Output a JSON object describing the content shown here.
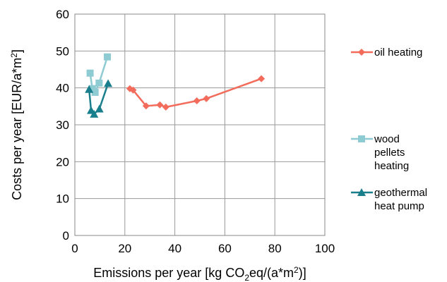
{
  "chart_data": {
    "type": "scatter",
    "xlabel_parts": [
      "Emissions per year [kg CO",
      "2",
      "eq/(a*m",
      "2",
      ")]"
    ],
    "ylabel_parts": [
      "Costs per year [EUR/a*m",
      "2",
      "]"
    ],
    "xlim": [
      0,
      100
    ],
    "ylim": [
      0,
      60
    ],
    "x_ticks": [
      0,
      20,
      40,
      60,
      80,
      100
    ],
    "y_ticks": [
      0,
      10,
      20,
      30,
      40,
      50,
      60
    ],
    "grid": true,
    "legend_position": "right",
    "series": [
      {
        "name": "oil heating",
        "name_lines": [
          "oil heating"
        ],
        "color": "#f26b5b",
        "marker": "diamond",
        "points": [
          [
            22.0,
            39.8
          ],
          [
            23.3,
            39.4
          ],
          [
            28.5,
            35.1
          ],
          [
            34.0,
            35.4
          ],
          [
            36.4,
            34.8
          ],
          [
            48.8,
            36.5
          ],
          [
            52.6,
            37.1
          ],
          [
            74.6,
            42.5
          ]
        ]
      },
      {
        "name": "wood pellets heating",
        "name_lines": [
          "wood",
          "pellets",
          "heating"
        ],
        "color": "#8ecbd3",
        "marker": "square",
        "points": [
          [
            6.1,
            44.0
          ],
          [
            7.0,
            39.8
          ],
          [
            8.1,
            38.8
          ],
          [
            9.7,
            41.3
          ],
          [
            13.0,
            48.4
          ]
        ]
      },
      {
        "name": "geothermal heat pump",
        "name_lines": [
          "geothermal",
          "heat pump"
        ],
        "color": "#1a7f8c",
        "marker": "triangle",
        "points": [
          [
            5.7,
            39.6
          ],
          [
            6.5,
            33.9
          ],
          [
            7.7,
            32.9
          ],
          [
            9.8,
            34.3
          ],
          [
            13.3,
            41.2
          ]
        ]
      }
    ]
  }
}
